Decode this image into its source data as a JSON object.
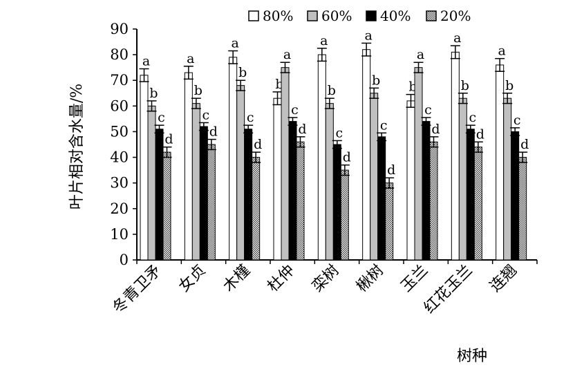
{
  "chart_data": {
    "type": "bar",
    "title": "",
    "xlabel": "树种",
    "ylabel": "叶片相对含水量/%",
    "ylim": [
      0,
      90
    ],
    "yticks": [
      0,
      10,
      20,
      30,
      40,
      50,
      60,
      70,
      80,
      90
    ],
    "grid": false,
    "legend_position": "top",
    "categories": [
      "冬青卫矛",
      "女贞",
      "木槿",
      "杜仲",
      "栾树",
      "楸树",
      "玉兰",
      "红花玉兰",
      "连翘"
    ],
    "series": [
      {
        "name": "80%",
        "color": "#ffffff",
        "values": [
          72,
          73,
          79,
          63,
          80,
          82,
          62,
          81,
          76
        ],
        "errors": [
          2.5,
          2.5,
          2.5,
          2.5,
          2.5,
          2.5,
          2.5,
          2.5,
          2.5
        ],
        "letters": [
          "a",
          "a",
          "a",
          "b",
          "a",
          "a",
          "b",
          "a",
          "a"
        ]
      },
      {
        "name": "60%",
        "color": "#c0c0c0",
        "values": [
          60,
          61,
          68,
          75,
          61,
          65,
          75,
          63,
          63
        ],
        "errors": [
          2,
          2,
          2,
          2,
          2,
          2,
          2,
          2,
          2
        ],
        "letters": [
          "b",
          "b",
          "b",
          "a",
          "b",
          "b",
          "a",
          "b",
          "b"
        ]
      },
      {
        "name": "40%",
        "color": "#000000",
        "values": [
          51,
          52,
          51,
          54,
          45,
          48,
          54,
          51,
          50
        ],
        "errors": [
          1.5,
          1.5,
          1.5,
          1.5,
          1.5,
          1.5,
          1.5,
          1.5,
          1.5
        ],
        "letters": [
          "c",
          "c",
          "c",
          "c",
          "c",
          "c",
          "c",
          "c",
          "c"
        ]
      },
      {
        "name": "20%",
        "color": "#909090",
        "values": [
          42,
          45,
          40,
          46,
          35,
          30,
          46,
          44,
          40
        ],
        "errors": [
          2,
          2,
          2,
          2,
          2,
          2,
          2,
          2,
          2
        ],
        "letters": [
          "d",
          "d",
          "d",
          "d",
          "d",
          "d",
          "d",
          "d",
          "d"
        ]
      }
    ]
  }
}
